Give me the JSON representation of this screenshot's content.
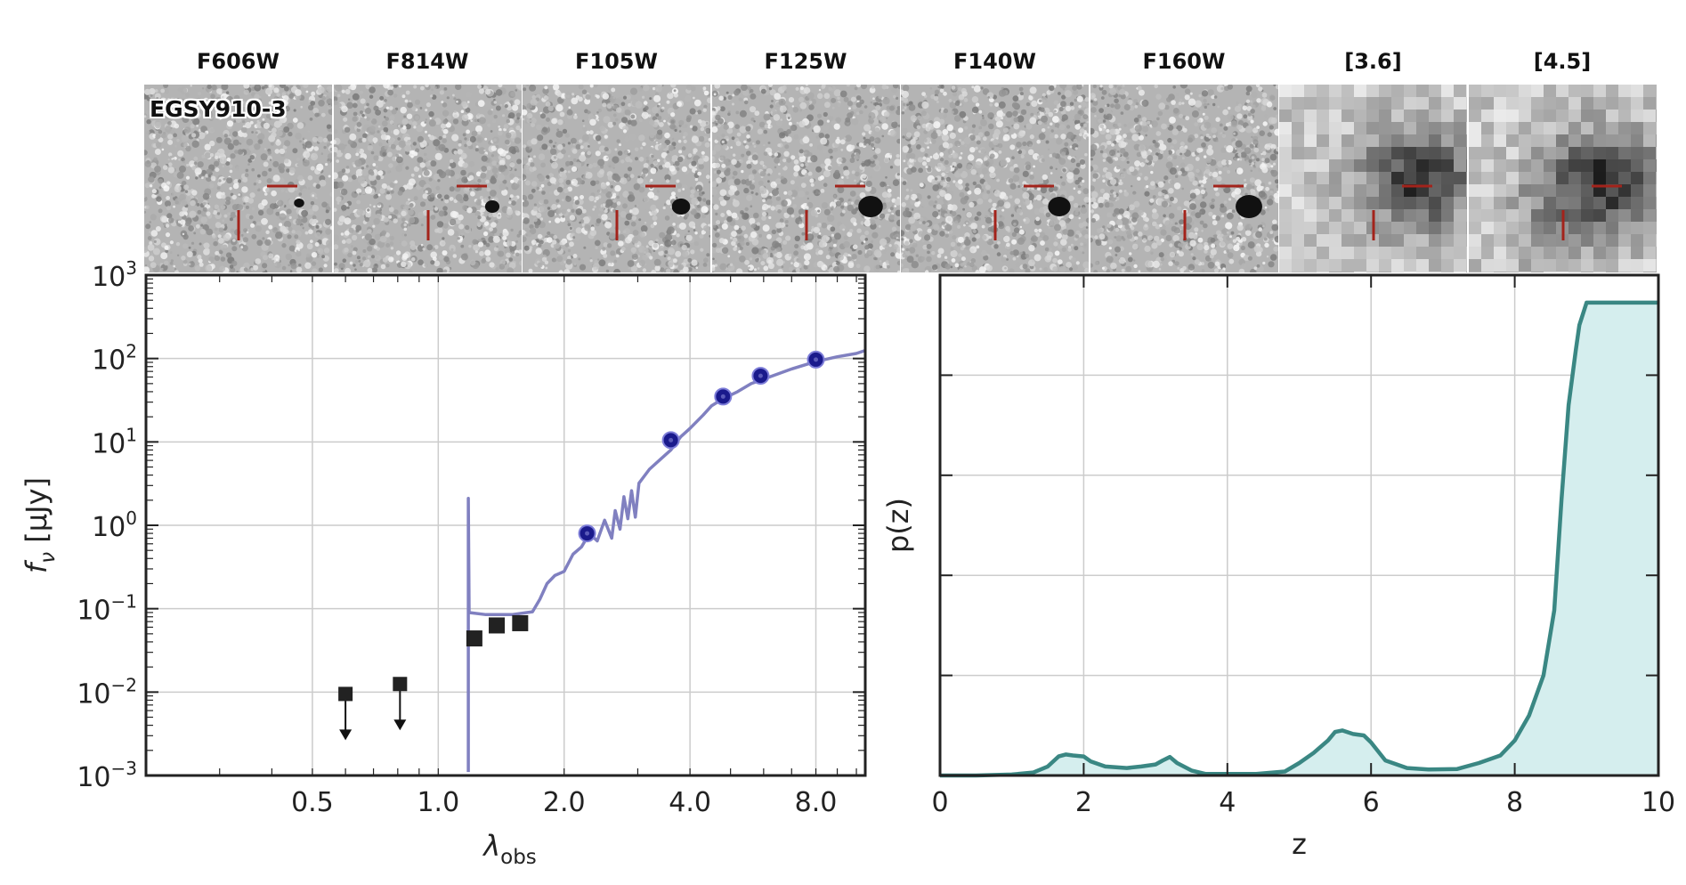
{
  "object_id": "EGSY910-3",
  "stamps": [
    {
      "band": "F606W",
      "kind": "hst"
    },
    {
      "band": "F814W",
      "kind": "hst"
    },
    {
      "band": "F105W",
      "kind": "hst"
    },
    {
      "band": "F125W",
      "kind": "hst"
    },
    {
      "band": "F140W",
      "kind": "hst"
    },
    {
      "band": "F160W",
      "kind": "hst"
    },
    {
      "band": "[3.6]",
      "kind": "irac"
    },
    {
      "band": "[4.5]",
      "kind": "irac"
    }
  ],
  "colors": {
    "model_sed": "#8080c0",
    "detections": "#1a1a8c",
    "limits": "#222222",
    "pz_line": "#3a8783",
    "pz_fill": "#d5eeee",
    "crosshair": "#a3231b",
    "grid": "#cccccc"
  },
  "chart_data": [
    {
      "type": "scatter",
      "title": "",
      "xlabel": "λobs",
      "ylabel": "fν [μJy]",
      "xscale": "log",
      "yscale": "log",
      "xlim": [
        0.2,
        10.5
      ],
      "ylim": [
        0.001,
        1000
      ],
      "xticks": [
        {
          "value": 0.5,
          "label": "0.5"
        },
        {
          "value": 1.0,
          "label": "1.0"
        },
        {
          "value": 2.0,
          "label": "2.0"
        },
        {
          "value": 4.0,
          "label": "4.0"
        },
        {
          "value": 8.0,
          "label": "8.0"
        }
      ],
      "yticks": [
        {
          "value": 0.001,
          "base": "10",
          "exp": "−3"
        },
        {
          "value": 0.01,
          "base": "10",
          "exp": "−2"
        },
        {
          "value": 0.1,
          "base": "10",
          "exp": "−1"
        },
        {
          "value": 1,
          "base": "10",
          "exp": "0"
        },
        {
          "value": 10,
          "base": "10",
          "exp": "1"
        },
        {
          "value": 100,
          "base": "10",
          "exp": "2"
        },
        {
          "value": 1000,
          "base": "10",
          "exp": "3"
        }
      ],
      "grid": true,
      "upper_limits": [
        {
          "x": 0.6,
          "y": 0.0095
        },
        {
          "x": 0.81,
          "y": 0.0125
        }
      ],
      "observed_squares": [
        {
          "x": 1.22,
          "y": 0.044
        },
        {
          "x": 1.38,
          "y": 0.063
        },
        {
          "x": 1.57,
          "y": 0.067
        }
      ],
      "model_detections": [
        {
          "x": 2.27,
          "y": 0.8
        },
        {
          "x": 3.6,
          "y": 10.5
        },
        {
          "x": 4.8,
          "y": 35
        },
        {
          "x": 5.9,
          "y": 62
        },
        {
          "x": 8.0,
          "y": 97
        }
      ],
      "model_sed": [
        [
          1.18,
          0.0011
        ],
        [
          1.18,
          2.1
        ],
        [
          1.185,
          0.09
        ],
        [
          1.3,
          0.085
        ],
        [
          1.5,
          0.085
        ],
        [
          1.68,
          0.092
        ],
        [
          1.75,
          0.13
        ],
        [
          1.82,
          0.2
        ],
        [
          1.9,
          0.25
        ],
        [
          2.0,
          0.28
        ],
        [
          2.1,
          0.45
        ],
        [
          2.2,
          0.55
        ],
        [
          2.3,
          0.8
        ],
        [
          2.4,
          0.65
        ],
        [
          2.5,
          1.15
        ],
        [
          2.6,
          0.7
        ],
        [
          2.65,
          1.5
        ],
        [
          2.72,
          0.9
        ],
        [
          2.78,
          2.2
        ],
        [
          2.84,
          1.2
        ],
        [
          2.9,
          2.6
        ],
        [
          2.96,
          1.25
        ],
        [
          3.02,
          3.2
        ],
        [
          3.2,
          4.7
        ],
        [
          3.4,
          6.2
        ],
        [
          3.6,
          8.0
        ],
        [
          3.8,
          11.5
        ],
        [
          4.0,
          14.5
        ],
        [
          4.3,
          21.0
        ],
        [
          4.5,
          27.0
        ],
        [
          4.8,
          33.0
        ],
        [
          5.2,
          40.0
        ],
        [
          5.6,
          50.0
        ],
        [
          6.2,
          60.0
        ],
        [
          7.0,
          75.0
        ],
        [
          8.0,
          92.0
        ],
        [
          9.0,
          105.0
        ],
        [
          10.0,
          115.0
        ],
        [
          10.5,
          125.0
        ]
      ]
    },
    {
      "type": "area",
      "title": "",
      "xlabel": "z",
      "ylabel": "p(z)",
      "xlim": [
        0,
        10
      ],
      "ylim": [
        0,
        1.0
      ],
      "xticks": [
        0,
        2,
        4,
        6,
        8,
        10
      ],
      "yticks_unlabeled": [
        0.2,
        0.4,
        0.6,
        0.8
      ],
      "grid": true,
      "x": [
        0,
        0.5,
        1.0,
        1.3,
        1.5,
        1.65,
        1.75,
        1.85,
        2.0,
        2.1,
        2.3,
        2.6,
        2.8,
        3.0,
        3.1,
        3.2,
        3.3,
        3.5,
        3.7,
        4.0,
        4.4,
        4.8,
        5.0,
        5.2,
        5.4,
        5.5,
        5.6,
        5.75,
        5.9,
        6.0,
        6.2,
        6.5,
        6.8,
        7.2,
        7.5,
        7.8,
        8.0,
        8.2,
        8.4,
        8.55,
        8.65,
        8.75,
        8.85,
        8.9,
        9.0,
        9.5,
        10.0
      ],
      "values": [
        0.0,
        0.0,
        0.002,
        0.006,
        0.018,
        0.038,
        0.042,
        0.04,
        0.038,
        0.028,
        0.018,
        0.015,
        0.018,
        0.022,
        0.03,
        0.037,
        0.025,
        0.01,
        0.003,
        0.003,
        0.003,
        0.008,
        0.025,
        0.045,
        0.07,
        0.087,
        0.09,
        0.083,
        0.08,
        0.066,
        0.03,
        0.015,
        0.012,
        0.013,
        0.025,
        0.04,
        0.07,
        0.12,
        0.2,
        0.33,
        0.55,
        0.74,
        0.85,
        0.9,
        0.945,
        0.945,
        0.945
      ]
    }
  ]
}
